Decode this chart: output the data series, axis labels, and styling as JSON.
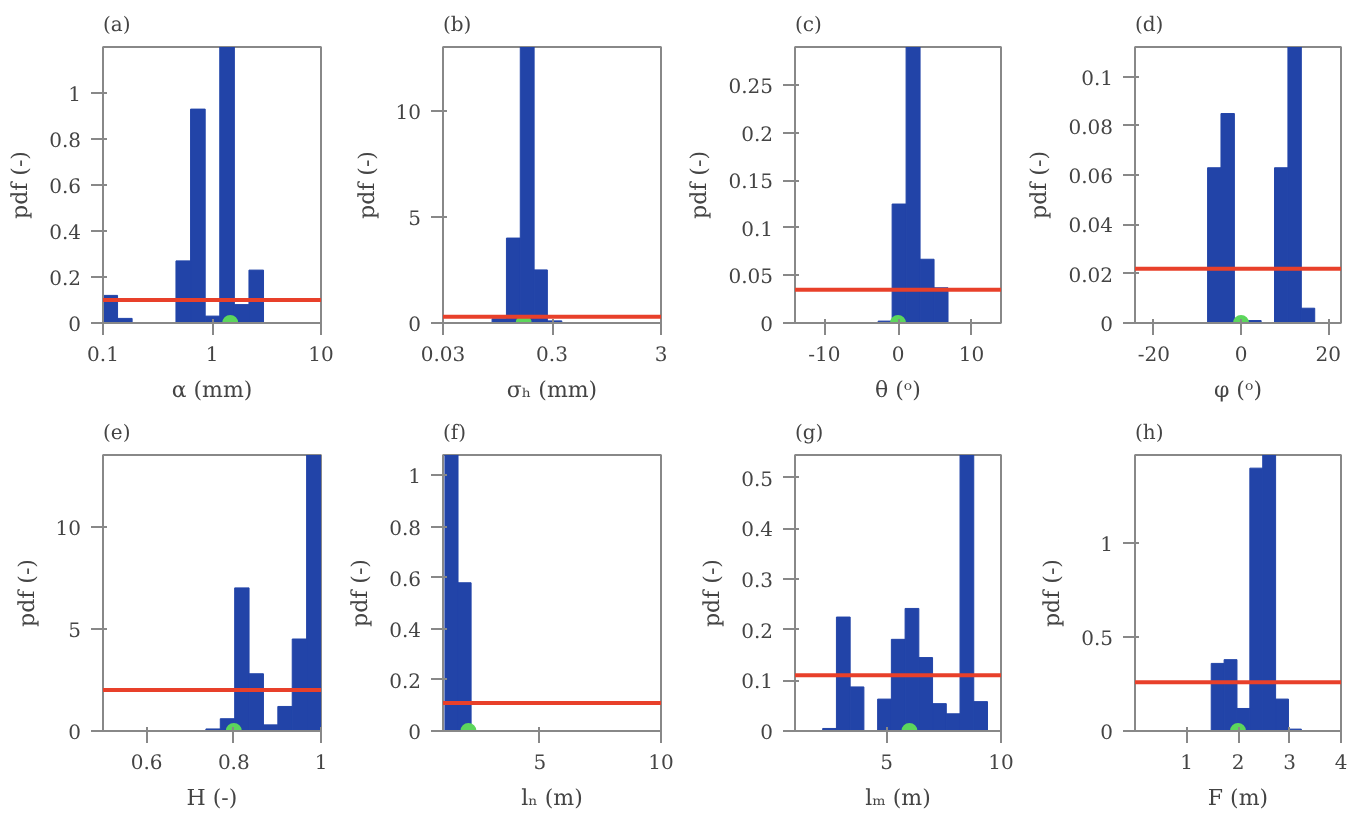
{
  "chart_data": [
    {
      "type": "histogram",
      "title": "(a)",
      "xlabel": "α (mm)",
      "ylabel": "pdf (-)",
      "log": "x",
      "xlim": [
        0.1,
        10
      ],
      "xticks": [
        0.1,
        1,
        10
      ],
      "ylim": [
        0,
        1.2
      ],
      "yticks": [
        0,
        0.2,
        0.4,
        0.6,
        0.8,
        1
      ],
      "grid": false,
      "series": [
        {
          "type": "histogram",
          "color": "#2244a8",
          "bins": [
            0.1,
            0.136,
            0.185,
            0.252,
            0.343,
            0.467,
            0.636,
            0.866,
            1.178,
            1.604,
            2.183,
            2.97
          ],
          "values": [
            0.12,
            0.02,
            0,
            0,
            0,
            0.27,
            0.93,
            0.03,
            1.2,
            0.08,
            0.23
          ]
        },
        {
          "type": "scatter",
          "color": "#5cd65c",
          "x": [
            1.47
          ],
          "values": [
            0
          ]
        }
      ],
      "ref_lines": [
        {
          "axis": "y",
          "value": 0.1,
          "color": "#e8402a"
        }
      ]
    },
    {
      "type": "histogram",
      "title": "(b)",
      "xlabel": "σₕ (mm)",
      "ylabel": "pdf (-)",
      "log": "x",
      "xlim": [
        0.03,
        3
      ],
      "xticks": [
        0.03,
        0.3,
        3
      ],
      "ylim": [
        0,
        13
      ],
      "yticks": [
        0,
        5,
        10
      ],
      "grid": false,
      "series": [
        {
          "type": "histogram",
          "color": "#2244a8",
          "bins": [
            0.0846,
            0.1146,
            0.1535,
            0.2056,
            0.272,
            0.369
          ],
          "values": [
            0.2,
            4.0,
            13,
            2.5,
            0.1
          ]
        },
        {
          "type": "scatter",
          "color": "#5cd65c",
          "x": [
            0.165
          ],
          "values": [
            0
          ]
        }
      ],
      "ref_lines": [
        {
          "axis": "y",
          "value": 0.3,
          "color": "#e8402a"
        }
      ]
    },
    {
      "type": "histogram",
      "title": "(c)",
      "xlabel": "θ (ᵒ)",
      "ylabel": "pdf (-)",
      "xlim": [
        -14,
        14
      ],
      "xticks": [
        -10,
        0,
        10
      ],
      "ylim": [
        0,
        0.29
      ],
      "yticks": [
        0,
        0.05,
        0.1,
        0.15,
        0.2,
        0.25
      ],
      "grid": false,
      "series": [
        {
          "type": "histogram",
          "color": "#2244a8",
          "bins": [
            -2.7,
            -0.8,
            1.1,
            3.0,
            4.9,
            6.8
          ],
          "values": [
            0.002,
            0.125,
            0.29,
            0.067,
            0.037
          ]
        },
        {
          "type": "scatter",
          "color": "#5cd65c",
          "x": [
            0
          ],
          "values": [
            0
          ]
        }
      ],
      "ref_lines": [
        {
          "axis": "y",
          "value": 0.035,
          "color": "#e8402a"
        }
      ]
    },
    {
      "type": "histogram",
      "title": "(d)",
      "xlabel": "φ (ᵒ)",
      "ylabel": "pdf (-)",
      "xlim": [
        -24.3,
        22.9
      ],
      "xticks": [
        -20,
        0,
        20
      ],
      "ylim": [
        0,
        0.112
      ],
      "yticks": [
        0,
        0.02,
        0.04,
        0.06,
        0.08,
        0.1
      ],
      "grid": false,
      "series": [
        {
          "type": "histogram",
          "color": "#2244a8",
          "bins": [
            -7.67,
            -4.6,
            -1.53,
            1.53,
            4.6,
            7.67,
            10.74,
            13.81,
            16.88
          ],
          "values": [
            0.063,
            0.085,
            0,
            0.001,
            0,
            0.063,
            0.112,
            0.006
          ]
        },
        {
          "type": "scatter",
          "color": "#5cd65c",
          "x": [
            0
          ],
          "values": [
            0
          ]
        }
      ],
      "ref_lines": [
        {
          "axis": "y",
          "value": 0.022,
          "color": "#e8402a"
        }
      ]
    },
    {
      "type": "histogram",
      "title": "(e)",
      "xlabel": "H (-)",
      "ylabel": "pdf (-)",
      "xlim": [
        0.5,
        1
      ],
      "xticks": [
        0.6,
        0.8,
        1
      ],
      "ylim": [
        0,
        13.5
      ],
      "yticks": [
        0,
        5,
        10
      ],
      "grid": false,
      "series": [
        {
          "type": "histogram",
          "color": "#2244a8",
          "bins": [
            0.736,
            0.769,
            0.802,
            0.835,
            0.868,
            0.901,
            0.934,
            0.967,
            1.0
          ],
          "values": [
            0.1,
            0.6,
            7.0,
            2.8,
            0.3,
            1.2,
            4.5,
            13.5
          ]
        },
        {
          "type": "scatter",
          "color": "#5cd65c",
          "x": [
            0.8
          ],
          "values": [
            0
          ]
        }
      ],
      "ref_lines": [
        {
          "axis": "y",
          "value": 2.0,
          "color": "#e8402a"
        }
      ]
    },
    {
      "type": "histogram",
      "title": "(f)",
      "xlabel": "lₙ (m)",
      "ylabel": "pdf (-)",
      "xlim": [
        1,
        10
      ],
      "xticks": [
        5,
        10
      ],
      "ylim": [
        0,
        1.08
      ],
      "yticks": [
        0,
        0.2,
        0.4,
        0.6,
        0.8,
        1
      ],
      "grid": false,
      "series": [
        {
          "type": "histogram",
          "color": "#2244a8",
          "bins": [
            1.08,
            1.62,
            2.16
          ],
          "values": [
            1.08,
            0.58
          ]
        },
        {
          "type": "scatter",
          "color": "#5cd65c",
          "x": [
            2.05
          ],
          "values": [
            0
          ]
        }
      ],
      "ref_lines": [
        {
          "axis": "y",
          "value": 0.11,
          "color": "#e8402a"
        }
      ]
    },
    {
      "type": "histogram",
      "title": "(g)",
      "xlabel": "lₘ (m)",
      "ylabel": "pdf (-)",
      "xlim": [
        1,
        10
      ],
      "xticks": [
        5,
        10
      ],
      "ylim": [
        0,
        0.545
      ],
      "yticks": [
        0,
        0.1,
        0.2,
        0.3,
        0.4,
        0.5
      ],
      "grid": false,
      "series": [
        {
          "type": "histogram",
          "color": "#2244a8",
          "bins": [
            2.21,
            2.81,
            3.41,
            4.01,
            4.61,
            5.21,
            5.81,
            6.41,
            7.01,
            7.61,
            8.21,
            8.81,
            9.41
          ],
          "values": [
            0.005,
            0.225,
            0.087,
            0,
            0.063,
            0.181,
            0.242,
            0.145,
            0.054,
            0.034,
            0.545,
            0.058
          ]
        },
        {
          "type": "scatter",
          "color": "#5cd65c",
          "x": [
            6.0
          ],
          "values": [
            0
          ]
        }
      ],
      "ref_lines": [
        {
          "axis": "y",
          "value": 0.11,
          "color": "#e8402a"
        }
      ]
    },
    {
      "type": "histogram",
      "title": "(h)",
      "xlabel": "F (m)",
      "ylabel": "pdf (-)",
      "xlim": [
        0,
        4
      ],
      "xticks": [
        1,
        2,
        3,
        4
      ],
      "ylim": [
        0,
        1.47
      ],
      "yticks": [
        0,
        0.5,
        1
      ],
      "grid": false,
      "series": [
        {
          "type": "histogram",
          "color": "#2244a8",
          "bins": [
            1.48,
            1.73,
            1.98,
            2.23,
            2.48,
            2.73,
            2.98,
            3.23
          ],
          "values": [
            0.36,
            0.38,
            0.12,
            1.4,
            1.47,
            0.17,
            0.01
          ]
        },
        {
          "type": "scatter",
          "color": "#5cd65c",
          "x": [
            2.0
          ],
          "values": [
            0
          ]
        }
      ],
      "ref_lines": [
        {
          "axis": "y",
          "value": 0.26,
          "color": "#e8402a"
        }
      ]
    }
  ]
}
